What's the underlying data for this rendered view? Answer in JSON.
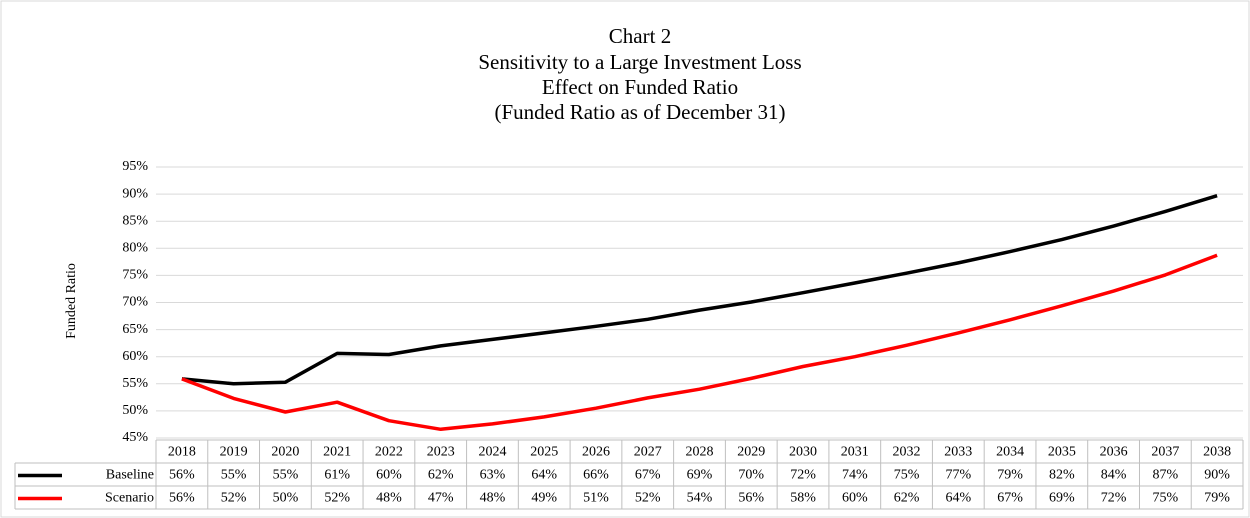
{
  "chart_data": {
    "type": "line",
    "title": [
      "Chart 2",
      "Sensitivity  to a Large Investment Loss",
      "Effect on Funded Ratio",
      "(Funded Ratio as of December 31)"
    ],
    "y_label": "Funded Ratio",
    "categories": [
      "2018",
      "2019",
      "2020",
      "2021",
      "2022",
      "2023",
      "2024",
      "2025",
      "2026",
      "2027",
      "2028",
      "2029",
      "2030",
      "2031",
      "2032",
      "2033",
      "2034",
      "2035",
      "2036",
      "2037",
      "2038"
    ],
    "series": [
      {
        "name": "Baseline",
        "color": "#000000",
        "values": [
          55.9,
          55.0,
          55.3,
          60.6,
          60.4,
          62.0,
          63.2,
          64.4,
          65.6,
          66.9,
          68.6,
          70.1,
          71.8,
          73.6,
          75.4,
          77.3,
          79.4,
          81.6,
          84.1,
          86.8,
          89.7
        ],
        "value_labels": [
          "56%",
          "55%",
          "55%",
          "61%",
          "60%",
          "62%",
          "63%",
          "64%",
          "66%",
          "67%",
          "69%",
          "70%",
          "72%",
          "74%",
          "75%",
          "77%",
          "79%",
          "82%",
          "84%",
          "87%",
          "90%"
        ]
      },
      {
        "name": "Scenario",
        "color": "#ff0000",
        "values": [
          55.9,
          52.3,
          49.8,
          51.6,
          48.2,
          46.6,
          47.6,
          48.9,
          50.5,
          52.4,
          54.0,
          56.0,
          58.2,
          60.0,
          62.1,
          64.4,
          66.8,
          69.4,
          72.1,
          75.1,
          78.7
        ],
        "value_labels": [
          "56%",
          "52%",
          "50%",
          "52%",
          "48%",
          "47%",
          "48%",
          "49%",
          "51%",
          "52%",
          "54%",
          "56%",
          "58%",
          "60%",
          "62%",
          "64%",
          "67%",
          "69%",
          "72%",
          "75%",
          "79%"
        ]
      }
    ],
    "ylim": [
      45,
      95
    ],
    "yticks": [
      {
        "value": 45,
        "label": "45%"
      },
      {
        "value": 50,
        "label": "50%"
      },
      {
        "value": 55,
        "label": "55%"
      },
      {
        "value": 60,
        "label": "60%"
      },
      {
        "value": 65,
        "label": "65%"
      },
      {
        "value": 70,
        "label": "70%"
      },
      {
        "value": 75,
        "label": "75%"
      },
      {
        "value": 80,
        "label": "80%"
      },
      {
        "value": 85,
        "label": "85%"
      },
      {
        "value": 90,
        "label": "90%"
      },
      {
        "value": 95,
        "label": "95%"
      }
    ],
    "grid": true
  }
}
